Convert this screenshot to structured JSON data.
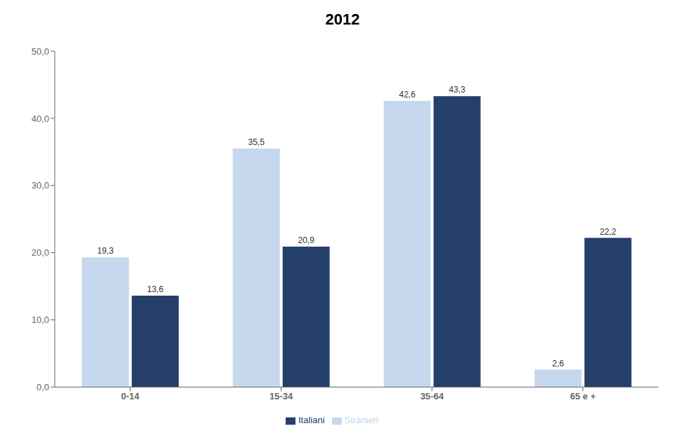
{
  "chart_data": {
    "type": "bar",
    "title": "2012",
    "categories": [
      "0-14",
      "15-34",
      "35-64",
      "65 e +"
    ],
    "series": [
      {
        "name": "Stranieri",
        "color": "#c5d8ed",
        "values": [
          19.3,
          35.5,
          42.6,
          2.6
        ],
        "value_labels": [
          "19,3",
          "35,5",
          "42,6",
          "2,6"
        ]
      },
      {
        "name": "Italiani",
        "color": "#253f6b",
        "values": [
          13.6,
          20.9,
          43.3,
          22.2
        ],
        "value_labels": [
          "13,6",
          "20,9",
          "43,3",
          "22,2"
        ]
      }
    ],
    "ylim": [
      0,
      50
    ],
    "yticks": [
      {
        "value": 0.0,
        "label": "0,0"
      },
      {
        "value": 10.0,
        "label": "10,0"
      },
      {
        "value": 20.0,
        "label": "20,0"
      },
      {
        "value": 30.0,
        "label": "30,0"
      },
      {
        "value": 40.0,
        "label": "40,0"
      },
      {
        "value": 50.0,
        "label": "50,0"
      }
    ],
    "grid": false,
    "legend": "bottom",
    "data_labels": true
  }
}
